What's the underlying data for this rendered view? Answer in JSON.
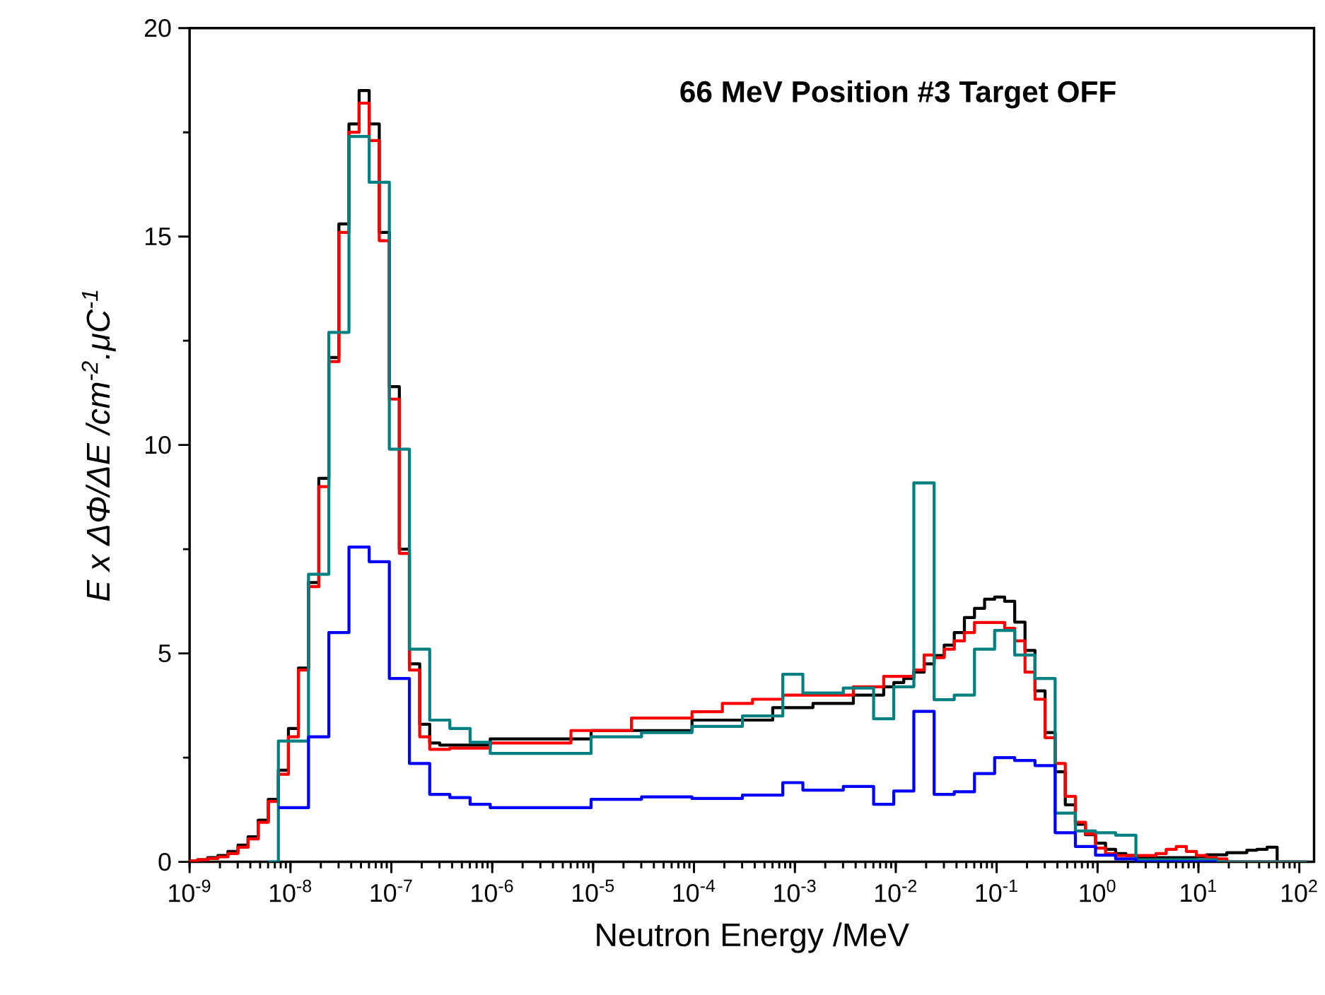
{
  "chart_data": {
    "type": "step",
    "title": "66 MeV Position #3 Target OFF",
    "xlabel": "Neutron Energy /MeV",
    "ylabel": "E x ΔΦ/ΔE /cm$^{-2}$.μC$^{-1}$",
    "log": "x",
    "marker": "none",
    "xlim": [
      1e-09,
      140
    ],
    "ylim": [
      0,
      20
    ],
    "xticks": [
      {
        "value": 1e-09,
        "label": "10$^{-9}$"
      },
      {
        "value": 1e-08,
        "label": "10$^{-8}$"
      },
      {
        "value": 1e-07,
        "label": "10$^{-7}$"
      },
      {
        "value": 1e-06,
        "label": "10$^{-6}$"
      },
      {
        "value": 1e-05,
        "label": "10$^{-5}$"
      },
      {
        "value": 0.0001,
        "label": "10$^{-4}$"
      },
      {
        "value": 0.001,
        "label": "10$^{-3}$"
      },
      {
        "value": 0.01,
        "label": "10$^{-2}$"
      },
      {
        "value": 0.1,
        "label": "10$^{-1}$"
      },
      {
        "value": 1,
        "label": "10$^{0}$"
      },
      {
        "value": 10,
        "label": "10$^{1}$"
      },
      {
        "value": 100,
        "label": "10$^{2}$"
      }
    ],
    "yticks": [
      0,
      5,
      10,
      15,
      20
    ],
    "series": [
      {
        "color": "#000000",
        "x": [
          1e-09,
          1.2e-09,
          1.51e-09,
          1.91e-09,
          2.4e-09,
          3.02e-09,
          3.8e-09,
          4.79e-09,
          6.03e-09,
          7.59e-09,
          9.55e-09,
          1.2e-08,
          1.51e-08,
          1.91e-08,
          2.4e-08,
          3.02e-08,
          3.8e-08,
          4.79e-08,
          6.03e-08,
          7.59e-08,
          9.55e-08,
          1.2e-07,
          1.51e-07,
          1.91e-07,
          2.4e-07,
          3.02e-07,
          9.55e-07,
          9.55e-06,
          9.55e-05,
          0.000603,
          0.00151,
          0.0038,
          0.00759,
          0.00955,
          0.012,
          0.0151,
          0.0191,
          0.024,
          0.0302,
          0.038,
          0.0479,
          0.0603,
          0.0759,
          0.0955,
          0.12,
          0.151,
          0.191,
          0.24,
          0.302,
          0.38,
          0.479,
          0.603,
          0.759,
          0.955,
          1.2,
          1.51,
          1.91,
          2.4,
          9.55,
          12,
          19.1,
          30.2,
          38,
          47.9,
          60.3
        ],
        "values": [
          0.02,
          0.05,
          0.1,
          0.15,
          0.25,
          0.4,
          0.6,
          1.0,
          1.5,
          2.2,
          3.2,
          4.65,
          6.7,
          9.2,
          12.1,
          15.3,
          17.7,
          18.5,
          17.7,
          15.1,
          11.4,
          7.5,
          4.75,
          3.3,
          2.85,
          2.8,
          2.95,
          3.15,
          3.4,
          3.7,
          3.8,
          4.0,
          4.2,
          4.3,
          4.4,
          4.55,
          4.75,
          4.95,
          5.2,
          5.5,
          5.86,
          6.08,
          6.3,
          6.35,
          6.25,
          5.75,
          5.07,
          4.1,
          3.1,
          2.16,
          1.37,
          0.9,
          0.65,
          0.45,
          0.3,
          0.2,
          0.15,
          0.1,
          0.12,
          0.17,
          0.22,
          0.28,
          0.3,
          0.35,
          0
        ]
      },
      {
        "color": "#ff0000",
        "x": [
          1e-09,
          1.2e-09,
          1.51e-09,
          1.91e-09,
          2.4e-09,
          3.02e-09,
          3.8e-09,
          4.79e-09,
          6.03e-09,
          7.59e-09,
          9.55e-09,
          1.2e-08,
          1.51e-08,
          1.91e-08,
          2.4e-08,
          3.02e-08,
          3.8e-08,
          4.79e-08,
          6.03e-08,
          7.59e-08,
          9.55e-08,
          1.2e-07,
          1.51e-07,
          1.91e-07,
          2.4e-07,
          3.8e-07,
          9.55e-07,
          6.03e-06,
          2.4e-05,
          9.55e-05,
          0.000191,
          0.00038,
          0.000759,
          0.0038,
          0.00759,
          0.0151,
          0.0191,
          0.024,
          0.0302,
          0.038,
          0.0479,
          0.0603,
          0.12,
          0.151,
          0.191,
          0.24,
          0.302,
          0.38,
          0.479,
          0.603,
          0.759,
          0.955,
          1.2,
          1.51,
          3.8,
          4.79,
          6.03,
          7.59,
          9.55,
          12,
          15.1,
          19.1,
          120
        ],
        "values": [
          0.02,
          0.05,
          0.08,
          0.12,
          0.2,
          0.35,
          0.55,
          0.95,
          1.45,
          2.1,
          3.0,
          4.6,
          6.6,
          9.0,
          12.0,
          15.1,
          17.5,
          18.2,
          17.3,
          14.9,
          11.1,
          7.4,
          4.6,
          3.0,
          2.7,
          2.73,
          2.85,
          3.15,
          3.45,
          3.6,
          3.8,
          3.9,
          4.0,
          4.2,
          4.45,
          4.6,
          4.96,
          4.9,
          5.1,
          5.3,
          5.5,
          5.74,
          5.6,
          5.3,
          4.55,
          3.9,
          2.98,
          2.36,
          1.57,
          0.95,
          0.67,
          0.33,
          0.2,
          0.15,
          0.2,
          0.3,
          0.37,
          0.25,
          0.15,
          0.1,
          0.07,
          0,
          0
        ]
      },
      {
        "color": "#008080",
        "x": [
          6.03e-09,
          7.59e-09,
          1.51e-08,
          2.4e-08,
          3.8e-08,
          6.03e-08,
          9.55e-08,
          1.51e-07,
          2.4e-07,
          3.8e-07,
          6.03e-07,
          9.55e-07,
          9.55e-06,
          3.02e-05,
          9.55e-05,
          0.000302,
          0.000759,
          0.0012,
          0.00302,
          0.00603,
          0.00955,
          0.0151,
          0.024,
          0.038,
          0.0603,
          0.0955,
          0.151,
          0.24,
          0.38,
          0.603,
          0.955,
          1.51,
          2.4,
          15.1,
          120
        ],
        "values": [
          0,
          2.9,
          6.9,
          12.7,
          17.4,
          16.3,
          9.9,
          5.1,
          3.4,
          3.2,
          2.87,
          2.6,
          3.0,
          3.1,
          3.25,
          3.5,
          4.5,
          4.05,
          4.17,
          3.43,
          4.2,
          9.09,
          3.89,
          4.0,
          5.1,
          5.55,
          4.96,
          4.4,
          1.17,
          0.74,
          0.7,
          0.64,
          0.05,
          0,
          0
        ]
      },
      {
        "color": "#0000ff",
        "x": [
          7.59e-09,
          1.51e-08,
          2.4e-08,
          3.8e-08,
          6.03e-08,
          9.55e-08,
          1.51e-07,
          2.4e-07,
          3.8e-07,
          6.03e-07,
          9.55e-07,
          9.55e-06,
          3.02e-05,
          9.55e-05,
          0.000302,
          0.000759,
          0.0012,
          0.00302,
          0.00603,
          0.00955,
          0.0151,
          0.024,
          0.038,
          0.0603,
          0.0955,
          0.151,
          0.24,
          0.38,
          0.603,
          0.955,
          1.51,
          2.4,
          15.1
        ],
        "values": [
          1.3,
          3.0,
          5.5,
          7.55,
          7.2,
          4.4,
          2.36,
          1.62,
          1.54,
          1.38,
          1.3,
          1.5,
          1.56,
          1.52,
          1.6,
          1.9,
          1.72,
          1.81,
          1.38,
          1.7,
          3.61,
          1.62,
          1.68,
          2.12,
          2.5,
          2.43,
          2.31,
          0.7,
          0.37,
          0.16,
          0.07,
          0,
          0
        ]
      }
    ]
  }
}
